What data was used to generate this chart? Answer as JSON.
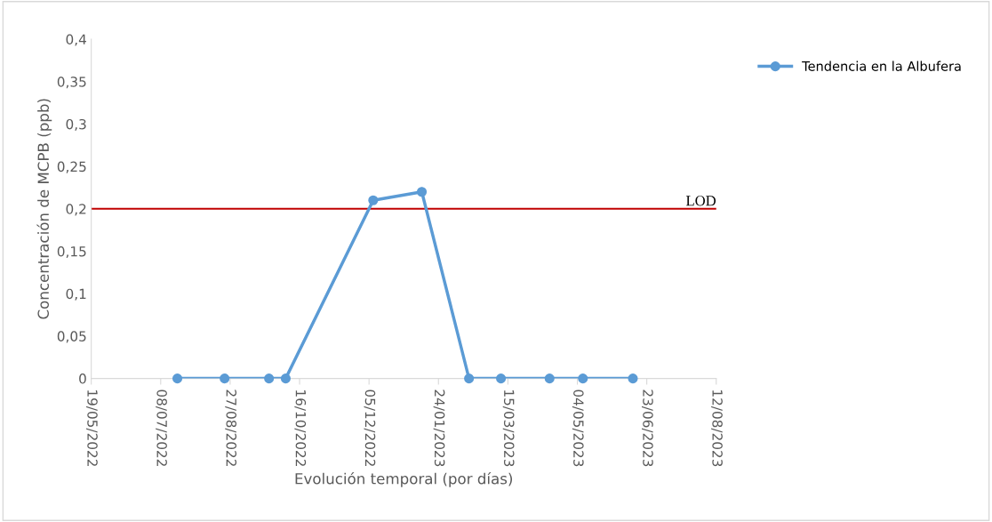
{
  "chart_data": {
    "type": "line",
    "xlabel": "Evolución temporal (por días)",
    "ylabel": "Concentración de MCPB (ppb)",
    "series": [
      {
        "name": "Tendencia en la Albufera",
        "color": "#5b9bd5",
        "x": [
          "2022-07-20",
          "2022-08-23",
          "2022-09-24",
          "2022-10-06",
          "2022-12-08",
          "2023-01-12",
          "2023-02-15",
          "2023-03-10",
          "2023-04-14",
          "2023-05-08",
          "2023-06-13"
        ],
        "values": [
          0,
          0,
          0,
          0,
          0.21,
          0.22,
          0,
          0,
          0,
          0,
          0
        ]
      }
    ],
    "xlim": [
      "2022-05-19",
      "2023-08-12"
    ],
    "xticks": [
      {
        "value": "2022-05-19",
        "label": "19/05/2022"
      },
      {
        "value": "2022-07-08",
        "label": "08/07/2022"
      },
      {
        "value": "2022-08-27",
        "label": "27/08/2022"
      },
      {
        "value": "2022-10-16",
        "label": "16/10/2022"
      },
      {
        "value": "2022-12-05",
        "label": "05/12/2022"
      },
      {
        "value": "2023-01-24",
        "label": "24/01/2023"
      },
      {
        "value": "2023-03-15",
        "label": "15/03/2023"
      },
      {
        "value": "2023-05-04",
        "label": "04/05/2023"
      },
      {
        "value": "2023-06-23",
        "label": "23/06/2023"
      },
      {
        "value": "2023-08-12",
        "label": "12/08/2023"
      }
    ],
    "ylim": [
      0,
      0.4
    ],
    "yticks": [
      {
        "value": 0,
        "label": "0"
      },
      {
        "value": 0.05,
        "label": "0,05"
      },
      {
        "value": 0.1,
        "label": "0,1"
      },
      {
        "value": 0.15,
        "label": "0,15"
      },
      {
        "value": 0.2,
        "label": "0,2"
      },
      {
        "value": 0.25,
        "label": "0,25"
      },
      {
        "value": 0.3,
        "label": "0,3"
      },
      {
        "value": 0.35,
        "label": "0,35"
      },
      {
        "value": 0.4,
        "label": "0,4"
      }
    ],
    "ref_lines": [
      {
        "axis": "y",
        "value": 0.2,
        "label": "LOD",
        "color": "#c00000"
      }
    ],
    "grid": false,
    "legend": "right",
    "marker": "circle",
    "line_style": "solid"
  }
}
